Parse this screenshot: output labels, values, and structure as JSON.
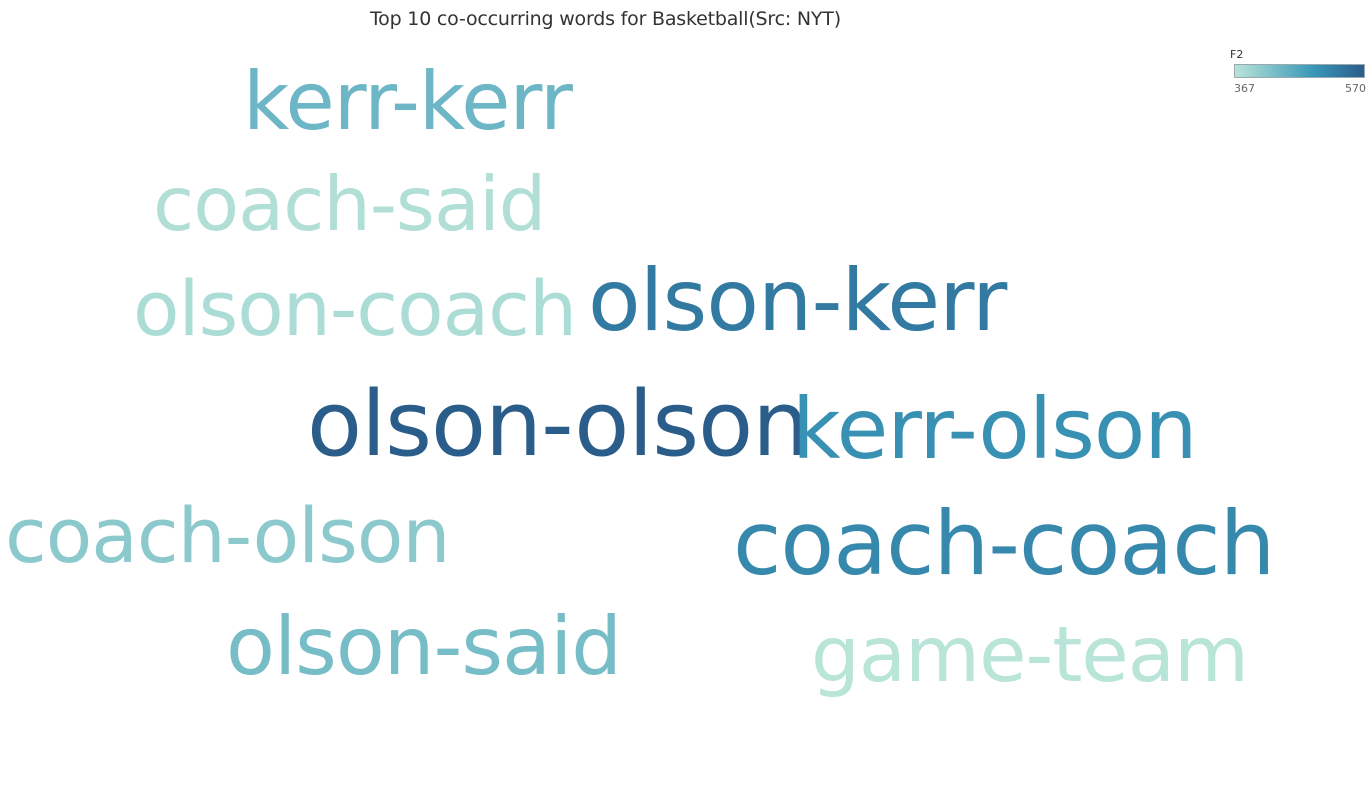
{
  "chart_data": {
    "type": "wordcloud",
    "title": "Top 10 co-occurring words for Basketball(Src: NYT)",
    "measure": "F2",
    "color_range": {
      "min": 367,
      "max": 570,
      "min_color": "#b9e4d8",
      "mid_color": "#3a98b9",
      "max_color": "#2b5d8a"
    },
    "words": [
      {
        "text": "olson-olson",
        "value": 570
      },
      {
        "text": "olson-kerr",
        "value": 530
      },
      {
        "text": "kerr-olson",
        "value": 500
      },
      {
        "text": "coach-coach",
        "value": 510
      },
      {
        "text": "kerr-kerr",
        "value": 440
      },
      {
        "text": "olson-said",
        "value": 430
      },
      {
        "text": "coach-olson",
        "value": 410
      },
      {
        "text": "coach-said",
        "value": 375
      },
      {
        "text": "olson-coach",
        "value": 380
      },
      {
        "text": "game-team",
        "value": 367
      }
    ]
  },
  "legend": {
    "title": "F2",
    "min_label": "367",
    "max_label": "570"
  }
}
